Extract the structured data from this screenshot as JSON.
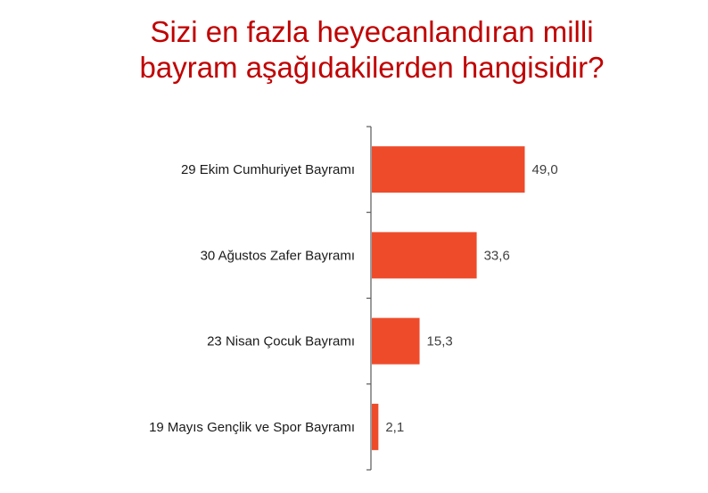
{
  "chart_data": {
    "type": "bar",
    "orientation": "horizontal",
    "title_lines": [
      "Sizi en fazla heyecanlandıran milli",
      "bayram aşağıdakilerden hangisidir?"
    ],
    "categories": [
      "29 Ekim Cumhuriyet Bayramı",
      "30 Ağustos Zafer Bayramı",
      "23 Nisan Çocuk Bayramı",
      "19 Mayıs Gençlik ve Spor Bayramı"
    ],
    "values": [
      49.0,
      33.6,
      15.3,
      2.1
    ],
    "value_labels": [
      "49,0",
      "33,6",
      "15,3",
      "2,1"
    ],
    "xlim": [
      0,
      100
    ],
    "grid": false,
    "legend": "none",
    "colors": {
      "bar": "#ee4b2b",
      "title": "#c00000",
      "axis": "#595959"
    }
  }
}
